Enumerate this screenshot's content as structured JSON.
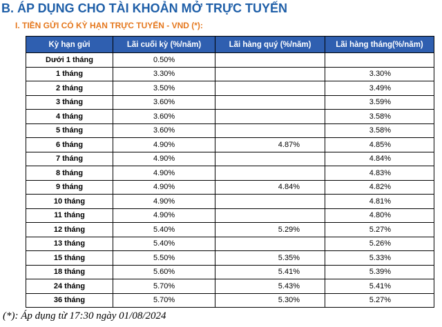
{
  "header": {
    "title": "B. ÁP DỤNG CHO TÀI KHOẢN MỞ TRỰC TUYẾN",
    "subtitle": "I. TIỀN GỬI CÓ KỲ HẠN TRỰC TUYẾN - VND (*):"
  },
  "table": {
    "columns": [
      "Kỳ hạn gửi",
      "Lãi cuối kỳ (%/năm)",
      "Lãi hàng quý (%/năm)",
      "Lãi hàng tháng(%/năm)"
    ],
    "rows": [
      [
        "Dưới 1 tháng",
        "0.50%",
        null,
        null
      ],
      [
        "1 tháng",
        "3.30%",
        null,
        "3.30%"
      ],
      [
        "2 tháng",
        "3.50%",
        null,
        "3.49%"
      ],
      [
        "3 tháng",
        "3.60%",
        null,
        "3.59%"
      ],
      [
        "4 tháng",
        "3.60%",
        null,
        "3.58%"
      ],
      [
        "5 tháng",
        "3.60%",
        null,
        "3.58%"
      ],
      [
        "6 tháng",
        "4.90%",
        "4.87%",
        "4.85%"
      ],
      [
        "7 tháng",
        "4.90%",
        null,
        "4.84%"
      ],
      [
        "8 tháng",
        "4.90%",
        null,
        "4.83%"
      ],
      [
        "9 tháng",
        "4.90%",
        "4.84%",
        "4.82%"
      ],
      [
        "10 tháng",
        "4.90%",
        null,
        "4.81%"
      ],
      [
        "11 tháng",
        "4.90%",
        null,
        "4.80%"
      ],
      [
        "12 tháng",
        "5.40%",
        "5.29%",
        "5.27%"
      ],
      [
        "13 tháng",
        "5.40%",
        null,
        "5.26%"
      ],
      [
        "15 tháng",
        "5.50%",
        "5.35%",
        "5.33%"
      ],
      [
        "18 tháng",
        "5.60%",
        "5.41%",
        "5.39%"
      ],
      [
        "24 tháng",
        "5.70%",
        "5.43%",
        "5.41%"
      ],
      [
        "36 tháng",
        "5.70%",
        "5.30%",
        "5.27%"
      ]
    ]
  },
  "footnote": "(*): Áp dụng từ 17:30 ngày 01/08/2024"
}
